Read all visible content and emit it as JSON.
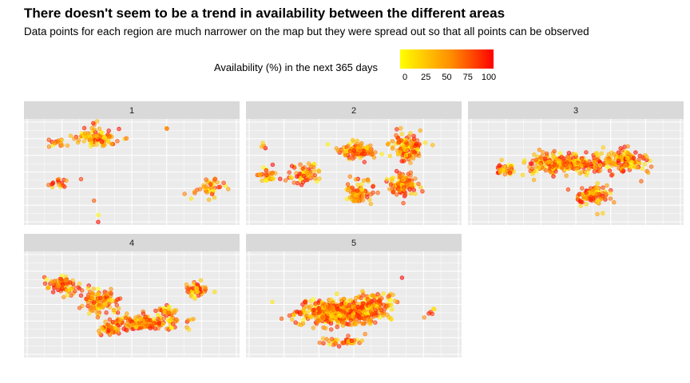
{
  "chart_data": {
    "type": "scatter",
    "title": "There doesn't seem to be a trend in availability between the different areas",
    "subtitle": "Data points for each region are much narrower on the map but they were spread out so that all points can be observed",
    "legend": {
      "title": "Availability (%) in the next 365 days",
      "ticks": [
        "0",
        "25",
        "50",
        "75",
        "100"
      ],
      "range": [
        0,
        100
      ],
      "colors": [
        "#ffff00",
        "#ffc000",
        "#ff8c00",
        "#ff4000",
        "#ff0000"
      ],
      "placement": "top"
    },
    "facets": [
      {
        "label": "1",
        "clusters": [
          {
            "x": 0.33,
            "y": 0.18,
            "sx": 0.1,
            "sy": 0.07,
            "n": 90
          },
          {
            "x": 0.15,
            "y": 0.22,
            "sx": 0.04,
            "sy": 0.03,
            "n": 15
          },
          {
            "x": 0.17,
            "y": 0.61,
            "sx": 0.06,
            "sy": 0.07,
            "n": 18
          },
          {
            "x": 0.86,
            "y": 0.65,
            "sx": 0.06,
            "sy": 0.09,
            "n": 40
          },
          {
            "x": 0.34,
            "y": 0.92,
            "sx": 0.01,
            "sy": 0.02,
            "n": 1
          },
          {
            "x": 0.34,
            "y": 0.98,
            "sx": 0.01,
            "sy": 0.01,
            "n": 1
          },
          {
            "x": 0.33,
            "y": 0.05,
            "sx": 0.02,
            "sy": 0.02,
            "n": 3
          },
          {
            "x": 0.66,
            "y": 0.09,
            "sx": 0.02,
            "sy": 0.02,
            "n": 2
          },
          {
            "x": 0.33,
            "y": 0.77,
            "sx": 0.01,
            "sy": 0.01,
            "n": 1
          }
        ]
      },
      {
        "label": "2",
        "clusters": [
          {
            "x": 0.51,
            "y": 0.3,
            "sx": 0.07,
            "sy": 0.07,
            "n": 110
          },
          {
            "x": 0.74,
            "y": 0.27,
            "sx": 0.07,
            "sy": 0.11,
            "n": 130
          },
          {
            "x": 0.72,
            "y": 0.62,
            "sx": 0.07,
            "sy": 0.1,
            "n": 110
          },
          {
            "x": 0.52,
            "y": 0.71,
            "sx": 0.06,
            "sy": 0.09,
            "n": 80
          },
          {
            "x": 0.27,
            "y": 0.52,
            "sx": 0.07,
            "sy": 0.09,
            "n": 60
          },
          {
            "x": 0.1,
            "y": 0.52,
            "sx": 0.05,
            "sy": 0.08,
            "n": 30
          },
          {
            "x": 0.08,
            "y": 0.28,
            "sx": 0.02,
            "sy": 0.03,
            "n": 4
          }
        ]
      },
      {
        "label": "3",
        "clusters": [
          {
            "x": 0.45,
            "y": 0.42,
            "sx": 0.17,
            "sy": 0.08,
            "n": 260
          },
          {
            "x": 0.73,
            "y": 0.4,
            "sx": 0.1,
            "sy": 0.1,
            "n": 140
          },
          {
            "x": 0.17,
            "y": 0.48,
            "sx": 0.04,
            "sy": 0.05,
            "n": 30
          },
          {
            "x": 0.58,
            "y": 0.71,
            "sx": 0.07,
            "sy": 0.07,
            "n": 90
          },
          {
            "x": 0.61,
            "y": 0.9,
            "sx": 0.01,
            "sy": 0.02,
            "n": 2
          }
        ]
      },
      {
        "label": "4",
        "clusters": [
          {
            "x": 0.18,
            "y": 0.32,
            "sx": 0.07,
            "sy": 0.1,
            "n": 80
          },
          {
            "x": 0.36,
            "y": 0.47,
            "sx": 0.07,
            "sy": 0.11,
            "n": 110
          },
          {
            "x": 0.56,
            "y": 0.67,
            "sx": 0.15,
            "sy": 0.07,
            "n": 170
          },
          {
            "x": 0.4,
            "y": 0.74,
            "sx": 0.05,
            "sy": 0.05,
            "n": 40
          },
          {
            "x": 0.8,
            "y": 0.35,
            "sx": 0.04,
            "sy": 0.07,
            "n": 45
          },
          {
            "x": 0.66,
            "y": 0.57,
            "sx": 0.04,
            "sy": 0.04,
            "n": 30
          }
        ]
      },
      {
        "label": "5",
        "clusters": [
          {
            "x": 0.44,
            "y": 0.58,
            "sx": 0.17,
            "sy": 0.11,
            "n": 500
          },
          {
            "x": 0.6,
            "y": 0.48,
            "sx": 0.08,
            "sy": 0.08,
            "n": 80
          },
          {
            "x": 0.45,
            "y": 0.85,
            "sx": 0.1,
            "sy": 0.03,
            "n": 40
          },
          {
            "x": 0.85,
            "y": 0.58,
            "sx": 0.03,
            "sy": 0.05,
            "n": 6
          },
          {
            "x": 0.72,
            "y": 0.25,
            "sx": 0.01,
            "sy": 0.01,
            "n": 1
          }
        ]
      }
    ],
    "axes_visible": false,
    "grid": true
  }
}
